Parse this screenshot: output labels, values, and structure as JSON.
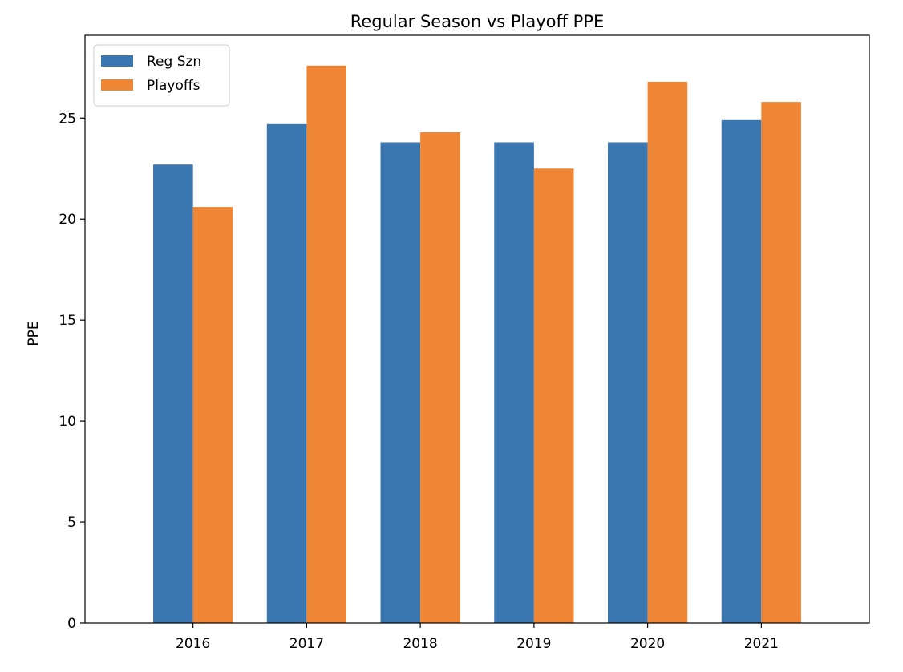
{
  "colors": {
    "reg_szn": "#3a76af",
    "playoffs": "#ef8636",
    "axis": "#000000",
    "legend_border": "#cccccc",
    "background": "#ffffff"
  },
  "chart_data": {
    "type": "bar",
    "title": "Regular Season vs Playoff PPE",
    "xlabel": "",
    "ylabel": "PPE",
    "categories": [
      "2016",
      "2017",
      "2018",
      "2019",
      "2020",
      "2021"
    ],
    "series": [
      {
        "name": "Reg Szn",
        "color": "#3a76af",
        "values": [
          22.7,
          24.7,
          23.8,
          23.8,
          23.8,
          24.9
        ]
      },
      {
        "name": "Playoffs",
        "color": "#ef8636",
        "values": [
          20.6,
          27.6,
          24.3,
          22.5,
          26.8,
          25.8
        ]
      }
    ],
    "ylim": [
      0,
      29.1
    ],
    "yticks": [
      0,
      5,
      10,
      15,
      20,
      25
    ],
    "ytick_labels": [
      "0",
      "5",
      "10",
      "15",
      "20",
      "25"
    ],
    "grid": false,
    "legend_position": "top-left"
  }
}
